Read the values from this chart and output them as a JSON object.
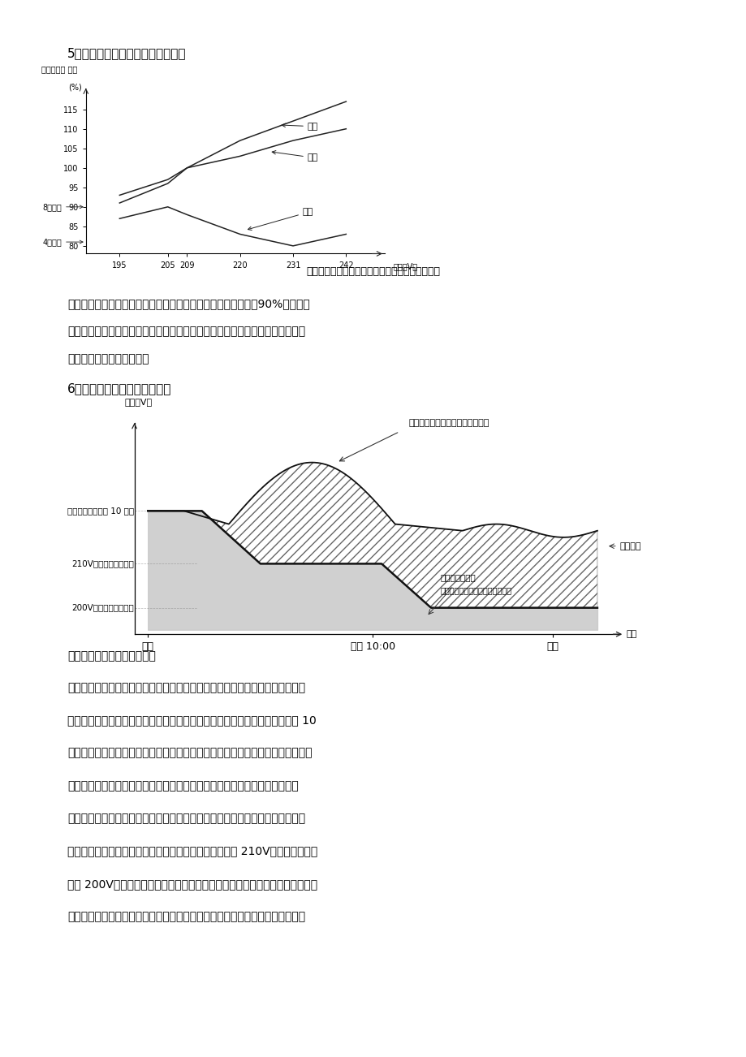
{
  "page_bg": "#ffffff",
  "section5_title": "5、照度、功耗、寿命与电压的关系",
  "section6_title": "6、照明节电的科学合理性安排",
  "chart1_ylabel1": "功耗、照度 寿命",
  "chart1_ylabel2": "(%)",
  "chart1_xlabel": "电压（V）",
  "chart1_yticks": [
    80,
    85,
    90,
    95,
    100,
    105,
    110,
    115
  ],
  "chart1_xticks": [
    195,
    205,
    209,
    220,
    231,
    242
  ],
  "chart1_caption": "气体放电灯的照度、功耗、寿命与电压的关系曲线",
  "chart2_label_before": "安装节电设备前（电压波动频繁）",
  "chart2_label_after1": "安装节电设备后",
  "chart2_label_after2": "（提供既稳定又节电的供电电压）",
  "chart2_ylabel": "电压（V）",
  "chart2_xlabel": "时间",
  "chart2_xtick_labels": [
    "黄昏",
    "晌上 10:00",
    "凌晨"
  ],
  "chart2_left_label0": "灯具全压启动运行 10 分钟",
  "chart2_left_label1": "210V（可调）节电运行",
  "chart2_left_label2": "200V（可调）节电运行",
  "chart2_right_label": "节电效果",
  "chart2_caption": "以路灯控制为例的节电效果图",
  "label_illum": "照度",
  "label_power": "功耗",
  "label_life": "寿命",
  "label_8k": "8千小时",
  "label_4k": "4千小时",
  "para1_lines": [
    "　　由图可以看出，当施加在灯两端的工作电压由额定值下降至90%时，照度",
    "变化并不明显，只是减少了灯在过电压情况下产生的眩光，而灯具的功耗却显著",
    "减小，寿命也会延长很多。"
  ],
  "para2_lines": [
    "　　综合上述情况，我们以道路照明节电控制为例，照明节电设备根据高压鼠灯",
    "的启动特性，照明节电设备应选择全压启动方式为最佳，当高压鼠灯充分点亮 10",
    "分钟后，放电管冷端温度达到稳定，放电便趋向稳定，灯泡的光通量、工作电压、",
    "工作电流和功率也处于正常工作状态后，照明节电设备再以慢斜坡的降压方式",
    "（不会产生任何冲击电流）调整输出电压，对于照明的功能性和安全性，根据道",
    "路实际状况设制比较合理的节电电压，上半夜节电电压为 210V，下半夜节电电",
    "压为 200V。照明节电设备同时应具有自动编程控制功能，便于用户可以根据当",
    "地道路照明需要，通过时控电路对照明负载的运行时间和供电电压进行编程，以"
  ],
  "text_color": "#000000"
}
